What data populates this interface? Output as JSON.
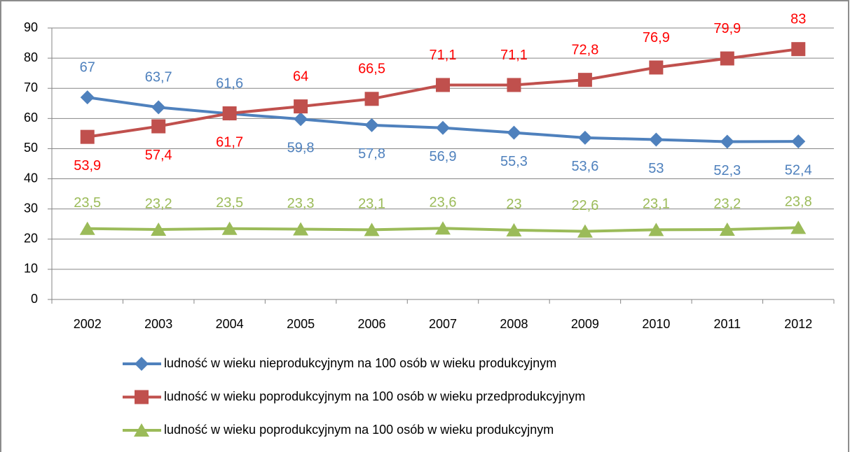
{
  "chart_data": {
    "type": "line",
    "categories": [
      "2002",
      "2003",
      "2004",
      "2005",
      "2006",
      "2007",
      "2008",
      "2009",
      "2010",
      "2011",
      "2012"
    ],
    "series": [
      {
        "name": "ludność w wieku nieprodukcyjnym na 100 osób w wieku produkcyjnym",
        "color": "#4f81bd",
        "label_color": "#4f81bd",
        "marker": "diamond",
        "values": [
          67,
          63.7,
          61.6,
          59.8,
          57.8,
          56.9,
          55.3,
          53.6,
          53,
          52.3,
          52.4
        ],
        "value_labels": [
          "67",
          "63,7",
          "61,6",
          "59,8",
          "57,8",
          "56,9",
          "55,3",
          "53,6",
          "53",
          "52,3",
          "52,4"
        ]
      },
      {
        "name": "ludność w wieku poprodukcyjnym na 100 osób w wieku przedprodukcyjnym",
        "color": "#c0504d",
        "label_color": "#ff0000",
        "marker": "square",
        "values": [
          53.9,
          57.4,
          61.7,
          64,
          66.5,
          71.1,
          71.1,
          72.8,
          76.9,
          79.9,
          83
        ],
        "value_labels": [
          "53,9",
          "57,4",
          "61,7",
          "64",
          "66,5",
          "71,1",
          "71,1",
          "72,8",
          "76,9",
          "79,9",
          "83"
        ]
      },
      {
        "name": "ludność w wieku poprodukcyjnym na 100 osób w wieku produkcyjnym",
        "color": "#9bbb59",
        "label_color": "#9bbb59",
        "marker": "triangle",
        "values": [
          23.5,
          23.2,
          23.5,
          23.3,
          23.1,
          23.6,
          23,
          22.6,
          23.1,
          23.2,
          23.8
        ],
        "value_labels": [
          "23,5",
          "23,2",
          "23,5",
          "23,3",
          "23,1",
          "23,6",
          "23",
          "22,6",
          "23,1",
          "23,2",
          "23,8"
        ]
      }
    ],
    "ylim": [
      0,
      90
    ],
    "yticks": [
      0,
      10,
      20,
      30,
      40,
      50,
      60,
      70,
      80,
      90
    ],
    "grid": true,
    "legend": "bottom"
  }
}
